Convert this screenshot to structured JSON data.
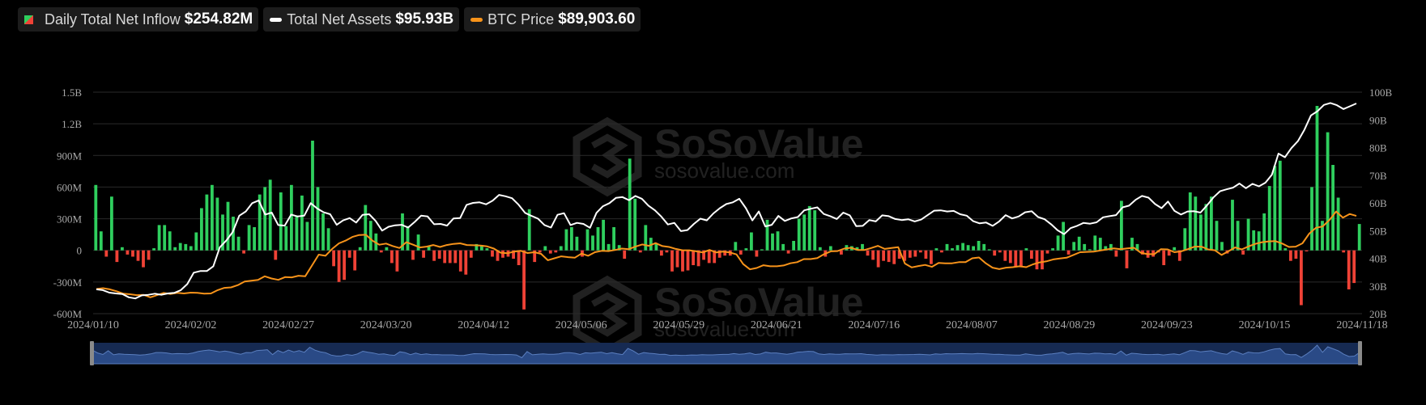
{
  "legend": [
    {
      "label": "Daily Total Net Inflow",
      "value": "$254.82M",
      "swatch": "bar",
      "color": "#2fcf5e",
      "color2": "#ef4236"
    },
    {
      "label": "Total Net Assets",
      "value": "$95.93B",
      "swatch": "line",
      "color": "#ffffff"
    },
    {
      "label": "BTC Price",
      "value": "$89,903.60",
      "swatch": "line",
      "color": "#f7931a"
    }
  ],
  "watermark": {
    "brand": "SoSoValue",
    "domain": "sosovalue.com"
  },
  "colors": {
    "positive": "#2fcf5e",
    "negative": "#ef4236",
    "assets_line": "#ffffff",
    "price_line": "#f7931a",
    "grid": "#2a2a2a",
    "axis_text": "#a8a8a8",
    "navigator": "#1f3566"
  },
  "chart_data": {
    "type": "bar",
    "x_tick_labels": [
      "2024/01/10",
      "2024/02/02",
      "2024/02/27",
      "2024/03/20",
      "2024/04/12",
      "2024/05/06",
      "2024/05/29",
      "2024/06/21",
      "2024/07/16",
      "2024/08/07",
      "2024/08/29",
      "2024/09/23",
      "2024/10/15",
      "2024/11/18"
    ],
    "y_left_ticks": [
      "1.5B",
      "1.2B",
      "900M",
      "600M",
      "300M",
      "0",
      "-300M",
      "-600M"
    ],
    "y_left_lim": [
      -600,
      1500
    ],
    "y_left_unit": "M",
    "y_right_ticks": [
      "100B",
      "90B",
      "80B",
      "70B",
      "60B",
      "50B",
      "40B",
      "30B",
      "20B"
    ],
    "y_right_lim": [
      20,
      100
    ],
    "y_right_unit": "B",
    "grid": true,
    "series": [
      {
        "name": "Daily Total Net Inflow",
        "kind": "bar",
        "values": [
          620,
          180,
          -60,
          510,
          -110,
          30,
          -40,
          -60,
          -100,
          -160,
          -90,
          20,
          240,
          240,
          180,
          30,
          70,
          60,
          40,
          170,
          400,
          530,
          620,
          500,
          340,
          460,
          320,
          130,
          -30,
          240,
          220,
          530,
          600,
          670,
          -90,
          550,
          230,
          620,
          330,
          520,
          270,
          1040,
          600,
          350,
          210,
          -150,
          -300,
          -280,
          -70,
          -190,
          30,
          430,
          280,
          160,
          -20,
          30,
          -120,
          -200,
          350,
          230,
          -90,
          150,
          -70,
          40,
          -100,
          -80,
          -120,
          -120,
          -120,
          -200,
          -230,
          -70,
          60,
          50,
          20,
          -60,
          -100,
          -70,
          -60,
          -80,
          -140,
          -560,
          390,
          -110,
          -20,
          40,
          -30,
          -20,
          40,
          200,
          220,
          130,
          -60,
          200,
          140,
          220,
          290,
          60,
          220,
          50,
          -80,
          870,
          490,
          -20,
          240,
          120,
          60,
          -50,
          -20,
          -200,
          -160,
          -200,
          -190,
          -140,
          -150,
          -90,
          -120,
          -120,
          -70,
          -50,
          -50,
          80,
          -40,
          20,
          170,
          -60,
          10,
          290,
          160,
          180,
          60,
          -30,
          90,
          300,
          340,
          420,
          380,
          30,
          -60,
          40,
          -10,
          -40,
          50,
          40,
          30,
          60,
          -50,
          -90,
          -160,
          -100,
          -110,
          -130,
          -80,
          -100,
          -70,
          -60,
          -20,
          -80,
          -130,
          20,
          -20,
          60,
          20,
          50,
          70,
          50,
          40,
          90,
          60,
          10,
          -50,
          -20,
          -100,
          -120,
          -160,
          -160,
          20,
          -80,
          -180,
          -180,
          -30,
          20,
          140,
          270,
          -40,
          80,
          130,
          60,
          10,
          140,
          120,
          40,
          60,
          -60,
          470,
          -170,
          120,
          60,
          -40,
          -70,
          -60,
          -20,
          -140,
          -50,
          30,
          -100,
          210,
          550,
          510,
          340,
          440,
          510,
          280,
          80,
          -30,
          480,
          280,
          -40,
          300,
          190,
          180,
          350,
          610,
          800,
          850,
          20,
          -100,
          -80,
          -520,
          -10,
          600,
          1370,
          280,
          1120,
          810,
          500,
          -20,
          -370,
          -310,
          250
        ]
      },
      {
        "name": "Total Net Assets",
        "kind": "line",
        "unit": "B",
        "values": [
          28.8,
          28.5,
          27.6,
          27.3,
          27.1,
          25.9,
          25.5,
          26.6,
          26.8,
          27.2,
          26.8,
          27.3,
          27.5,
          28.5,
          30.7,
          34.8,
          35.4,
          35.4,
          37.1,
          43.9,
          46.4,
          49.5,
          55.4,
          56.9,
          59.9,
          60.9,
          55.8,
          56.5,
          52.0,
          51.8,
          55.8,
          55.1,
          55.4,
          59.9,
          58.0,
          56.6,
          55.9,
          52.1,
          53.7,
          54.5,
          52.9,
          55.7,
          55.9,
          53.5,
          50.0,
          51.4,
          51.9,
          52.1,
          51.1,
          53.1,
          55.4,
          55.1,
          52.3,
          52.4,
          51.8,
          54.4,
          54.5,
          59.3,
          60.0,
          60.2,
          59.5,
          60.8,
          62.9,
          62.4,
          61.7,
          59.4,
          56.4,
          55.3,
          54.3,
          52.0,
          51.1,
          55.7,
          56.3,
          52.0,
          52.8,
          52.4,
          51.0,
          56.4,
          58.8,
          59.9,
          61.8,
          62.1,
          61.0,
          62.5,
          61.5,
          59.0,
          57.3,
          55.0,
          52.2,
          52.8,
          49.8,
          50.2,
          52.4,
          54.3,
          53.7,
          56.2,
          58.1,
          59.6,
          60.2,
          61.5,
          58.1,
          53.7,
          56.9,
          51.5,
          52.1,
          55.3,
          53.5,
          54.4,
          54.9,
          57.3,
          57.9,
          58.4,
          56.0,
          55.2,
          54.2,
          56.5,
          55.5,
          51.6,
          51.7,
          53.8,
          53.3,
          55.5,
          55.2,
          54.2,
          53.8,
          54.1,
          53.3,
          54.0,
          55.6,
          57.2,
          57.3,
          56.9,
          57.1,
          55.9,
          55.4,
          53.4,
          52.6,
          52.9,
          51.7,
          53.3,
          55.6,
          54.4,
          55.1,
          56.6,
          57.0,
          54.9,
          54.1,
          52.3,
          50.1,
          48.7,
          50.9,
          51.7,
          52.8,
          52.5,
          53.0,
          54.8,
          55.2,
          55.6,
          58.4,
          59.0,
          61.1,
          62.5,
          61.9,
          59.6,
          58.1,
          60.5,
          57.1,
          55.8,
          56.9,
          57.0,
          56.5,
          59.1,
          62.0,
          64.2,
          64.9,
          65.5,
          67.0,
          65.3,
          66.9,
          66.0,
          67.3,
          70.2,
          77.8,
          76.5,
          79.8,
          82.3,
          86.4,
          91.6,
          93.1,
          95.4,
          96.1,
          95.3,
          93.9,
          94.9,
          95.9
        ]
      },
      {
        "name": "BTC Price",
        "kind": "line",
        "unit": "B",
        "values": [
          28.9,
          29.2,
          28.8,
          28.1,
          27.2,
          27.0,
          26.7,
          26.8,
          25.9,
          26.7,
          27.5,
          27.1,
          27.5,
          27.3,
          27.6,
          27.5,
          27.2,
          27.3,
          28.5,
          29.3,
          29.5,
          30.3,
          31.6,
          31.9,
          32.2,
          33.5,
          32.7,
          32.2,
          33.2,
          33.1,
          33.7,
          33.5,
          37.4,
          41.3,
          40.9,
          43.4,
          45.4,
          46.4,
          47.7,
          48.4,
          48.5,
          46.3,
          44.9,
          45.3,
          44.4,
          43.7,
          45.8,
          44.9,
          43.9,
          44.2,
          44.8,
          44.1,
          44.8,
          45.2,
          45.4,
          44.8,
          44.7,
          44.6,
          44.3,
          43.5,
          42.0,
          41.8,
          42.4,
          42.7,
          41.9,
          42.2,
          41.6,
          39.3,
          40.0,
          40.7,
          40.4,
          40.2,
          41.7,
          40.9,
          42.2,
          42.7,
          42.6,
          43.0,
          43.5,
          43.3,
          44.2,
          45.0,
          44.5,
          45.5,
          44.4,
          44.1,
          43.4,
          42.9,
          42.9,
          42.5,
          42.1,
          43.0,
          42.1,
          42.4,
          42.1,
          41.4,
          37.9,
          36.0,
          36.5,
          37.5,
          37.1,
          37.1,
          37.4,
          38.2,
          38.6,
          39.7,
          39.7,
          40.1,
          41.5,
          42.5,
          42.6,
          43.5,
          43.8,
          43.0,
          43.0,
          43.7,
          44.5,
          43.4,
          43.7,
          44.0,
          38.1,
          36.7,
          37.2,
          37.6,
          36.9,
          38.3,
          38.2,
          38.2,
          38.6,
          38.6,
          40.0,
          40.3,
          38.2,
          36.6,
          36.1,
          36.6,
          36.8,
          37.1,
          36.8,
          37.8,
          38.5,
          38.9,
          39.6,
          39.9,
          40.2,
          41.2,
          42.2,
          42.3,
          42.4,
          42.8,
          43.2,
          43.6,
          43.3,
          43.6,
          43.8,
          42.0,
          41.5,
          41.5,
          43.3,
          43.2,
          42.2,
          42.5,
          43.3,
          44.2,
          44.2,
          43.2,
          42.9,
          41.2,
          42.5,
          43.9,
          43.2,
          44.3,
          45.2,
          45.8,
          46.1,
          46.2,
          45.3,
          44.1,
          44.2,
          45.4,
          48.9,
          51.0,
          51.5,
          53.8,
          56.9,
          54.7,
          56.0,
          55.3
        ]
      }
    ]
  }
}
